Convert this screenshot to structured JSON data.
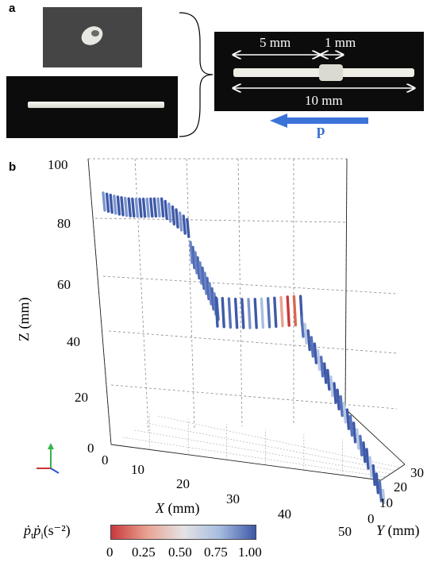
{
  "panel_a": {
    "label": "a",
    "dim_5mm": "5 mm",
    "dim_1mm": "1 mm",
    "dim_10mm": "10 mm",
    "vector": "p"
  },
  "panel_b": {
    "label": "b",
    "z_ticks": [
      "100",
      "80",
      "60",
      "40",
      "20",
      "0"
    ],
    "x_ticks": [
      "0",
      "10",
      "20",
      "30",
      "40",
      "50"
    ],
    "y_ticks": [
      "0",
      "10",
      "20",
      "30"
    ],
    "z_label": "Z (mm)",
    "x_label_var": "X",
    "x_label_unit": " (mm)",
    "y_label_var": "Y",
    "y_label_unit": " (mm)",
    "colorbar": {
      "label_html": "ṗiṗi(s⁻²)",
      "label_main": "ṗ",
      "label_sub": "t",
      "label_main2": "ṗ",
      "label_sub2": "i",
      "label_unit": "(s⁻²)",
      "ticks": [
        "0",
        "0.25",
        "0.50",
        "0.75",
        "1.00"
      ],
      "min": 0,
      "max": 1,
      "colors": [
        "#c8393b",
        "#e9a393",
        "#e5e3e5",
        "#a6bde0",
        "#3e59a8"
      ]
    }
  }
}
